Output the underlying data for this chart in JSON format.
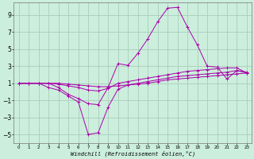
{
  "xlabel": "Windchill (Refroidissement éolien,°C)",
  "background_color": "#cceedd",
  "grid_color": "#aaccbb",
  "line_color": "#aa00aa",
  "xlim": [
    -0.5,
    23.5
  ],
  "ylim": [
    -6,
    10.5
  ],
  "yticks": [
    -5,
    -3,
    -1,
    1,
    3,
    5,
    7,
    9
  ],
  "xticks": [
    0,
    1,
    2,
    3,
    4,
    5,
    6,
    7,
    8,
    9,
    10,
    11,
    12,
    13,
    14,
    15,
    16,
    17,
    18,
    19,
    20,
    21,
    22,
    23
  ],
  "series": [
    [
      1.0,
      1.0,
      1.0,
      0.5,
      0.2,
      -0.5,
      -1.2,
      -5.0,
      -4.8,
      -1.8,
      0.3,
      0.8,
      1.0,
      1.2,
      1.4,
      1.6,
      1.8,
      1.9,
      2.0,
      2.1,
      2.2,
      2.3,
      2.5,
      2.2
    ],
    [
      1.0,
      1.0,
      1.0,
      1.0,
      0.5,
      -0.3,
      -0.8,
      -1.4,
      -1.5,
      0.5,
      3.3,
      3.1,
      4.5,
      6.2,
      8.2,
      9.8,
      9.9,
      7.6,
      5.5,
      3.0,
      2.9,
      1.5,
      2.5,
      2.3
    ],
    [
      1.0,
      1.0,
      1.0,
      1.0,
      0.9,
      0.7,
      0.5,
      0.2,
      0.1,
      0.4,
      1.0,
      1.2,
      1.4,
      1.6,
      1.8,
      2.0,
      2.2,
      2.4,
      2.5,
      2.6,
      2.7,
      2.8,
      2.8,
      2.2
    ],
    [
      1.0,
      1.0,
      1.0,
      1.0,
      1.0,
      0.9,
      0.8,
      0.7,
      0.6,
      0.6,
      0.7,
      0.8,
      0.9,
      1.0,
      1.2,
      1.4,
      1.5,
      1.6,
      1.7,
      1.8,
      1.9,
      2.0,
      2.1,
      2.2
    ]
  ]
}
